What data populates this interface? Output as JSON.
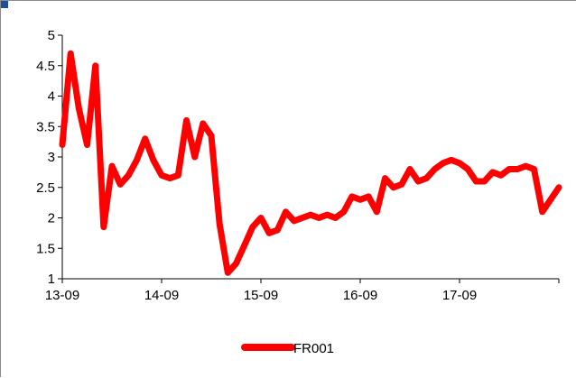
{
  "chart_data": {
    "type": "line",
    "title": "",
    "xlabel": "",
    "ylabel": "",
    "x_tick_labels": [
      "13-09",
      "14-09",
      "15-09",
      "16-09",
      "17-09"
    ],
    "y_tick_labels": [
      "1",
      "1.5",
      "2",
      "2.5",
      "3",
      "3.5",
      "4",
      "4.5",
      "5"
    ],
    "ylim": [
      1,
      5
    ],
    "xlim": [
      "2013-09",
      "2018-09"
    ],
    "grid": false,
    "legend_position": "bottom-center",
    "series": [
      {
        "name": "FR001",
        "color": "#ff0000",
        "x": [
          "2013-09",
          "2013-10",
          "2013-11",
          "2013-12",
          "2014-01",
          "2014-02",
          "2014-03",
          "2014-04",
          "2014-05",
          "2014-06",
          "2014-07",
          "2014-08",
          "2014-09",
          "2014-10",
          "2014-11",
          "2014-12",
          "2015-01",
          "2015-02",
          "2015-03",
          "2015-04",
          "2015-05",
          "2015-06",
          "2015-07",
          "2015-08",
          "2015-09",
          "2015-10",
          "2015-11",
          "2015-12",
          "2016-01",
          "2016-02",
          "2016-03",
          "2016-04",
          "2016-05",
          "2016-06",
          "2016-07",
          "2016-08",
          "2016-09",
          "2016-10",
          "2016-11",
          "2016-12",
          "2017-01",
          "2017-02",
          "2017-03",
          "2017-04",
          "2017-05",
          "2017-06",
          "2017-07",
          "2017-08",
          "2017-09",
          "2017-10",
          "2017-11",
          "2017-12",
          "2018-01",
          "2018-02",
          "2018-03",
          "2018-04",
          "2018-05",
          "2018-06",
          "2018-07",
          "2018-08",
          "2018-09"
        ],
        "y": [
          3.2,
          4.7,
          3.8,
          3.2,
          4.5,
          1.85,
          2.85,
          2.55,
          2.7,
          2.95,
          3.3,
          2.95,
          2.7,
          2.65,
          2.7,
          3.6,
          3.0,
          3.55,
          3.35,
          1.9,
          1.1,
          1.25,
          1.55,
          1.85,
          2.0,
          1.75,
          1.8,
          2.1,
          1.95,
          2.0,
          2.05,
          2.0,
          2.05,
          2.0,
          2.1,
          2.35,
          2.3,
          2.35,
          2.1,
          2.65,
          2.5,
          2.55,
          2.8,
          2.6,
          2.65,
          2.8,
          2.9,
          2.95,
          2.9,
          2.8,
          2.6,
          2.6,
          2.75,
          2.7,
          2.8,
          2.8,
          2.85,
          2.8,
          2.1,
          2.3,
          2.5
        ]
      }
    ]
  }
}
